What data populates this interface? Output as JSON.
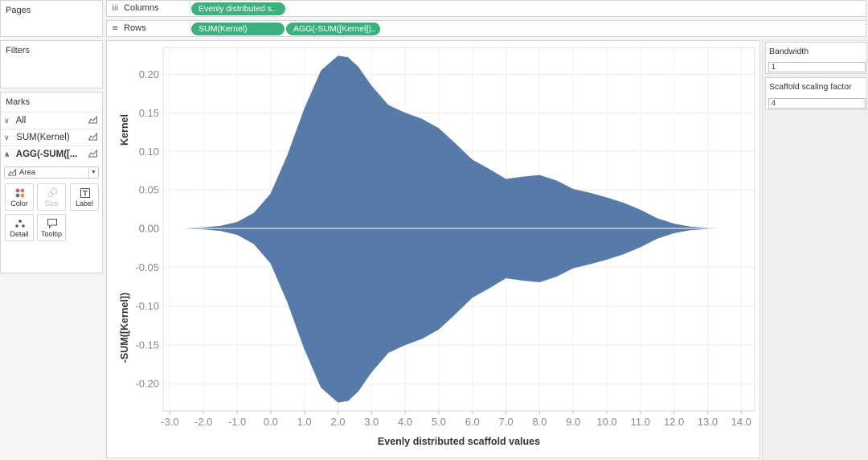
{
  "left": {
    "pages_title": "Pages",
    "filters_title": "Filters",
    "marks": {
      "title": "Marks",
      "rows": [
        {
          "label": "All"
        },
        {
          "label": "SUM(Kernel)"
        },
        {
          "label": "AGG(-SUM([..."
        }
      ],
      "mark_type": "Area",
      "buttons": {
        "color": "Color",
        "size": "Size",
        "label": "Label",
        "detail": "Detail",
        "tooltip": "Tooltip"
      }
    }
  },
  "shelves": {
    "columns_label": "Columns",
    "rows_label": "Rows",
    "columns_pills": [
      "Evenly distributed s.."
    ],
    "rows_pills": [
      "SUM(Kernel)",
      "AGG(-SUM([Kernel]).."
    ]
  },
  "parameters": {
    "bandwidth": {
      "title": "Bandwidth",
      "value": "1"
    },
    "scale": {
      "title": "Scaffold scaling factor",
      "value": "4"
    }
  },
  "colors": {
    "area": "#577ba8",
    "pill": "#3ab27d"
  },
  "chart_data": {
    "type": "area",
    "xlabel": "Evenly distributed scaffold values",
    "x_ticks": [
      "-3.0",
      "-2.0",
      "-1.0",
      "0.0",
      "1.0",
      "2.0",
      "3.0",
      "4.0",
      "5.0",
      "6.0",
      "7.0",
      "8.0",
      "9.0",
      "10.0",
      "11.0",
      "12.0",
      "13.0",
      "14.0"
    ],
    "x_range": [
      -3.2,
      14.4
    ],
    "panes": [
      {
        "ylabel": "Kernel",
        "ylim": [
          0,
          0.235
        ],
        "y_ticks": [
          "0.20",
          "0.15",
          "0.10",
          "0.05",
          "0.00"
        ],
        "tick_values": [
          0.2,
          0.15,
          0.1,
          0.05,
          0.0
        ],
        "sign": 1
      },
      {
        "ylabel": "-SUM([Kernel])",
        "ylim": [
          -0.235,
          0
        ],
        "y_ticks": [
          "0.00",
          "-0.05",
          "-0.10",
          "-0.15",
          "-0.20"
        ],
        "tick_values": [
          0.0,
          -0.05,
          -0.1,
          -0.15,
          -0.2
        ],
        "sign": -1
      }
    ],
    "series": [
      {
        "x": [
          -2.8,
          -2.0,
          -1.5,
          -1.0,
          -0.5,
          0.0,
          0.5,
          1.0,
          1.5,
          2.0,
          2.3,
          2.6,
          3.0,
          3.5,
          4.0,
          4.5,
          5.0,
          5.5,
          6.0,
          6.5,
          7.0,
          7.5,
          8.0,
          8.5,
          9.0,
          9.5,
          10.0,
          10.5,
          11.0,
          11.5,
          12.0,
          12.5,
          13.0,
          13.5,
          14.0
        ],
        "y": [
          0.0,
          0.001,
          0.003,
          0.008,
          0.02,
          0.045,
          0.095,
          0.155,
          0.205,
          0.224,
          0.222,
          0.21,
          0.185,
          0.16,
          0.15,
          0.142,
          0.13,
          0.11,
          0.089,
          0.077,
          0.064,
          0.067,
          0.069,
          0.062,
          0.051,
          0.046,
          0.04,
          0.033,
          0.024,
          0.013,
          0.006,
          0.002,
          0.0005,
          0.0001,
          0.0
        ]
      }
    ]
  }
}
